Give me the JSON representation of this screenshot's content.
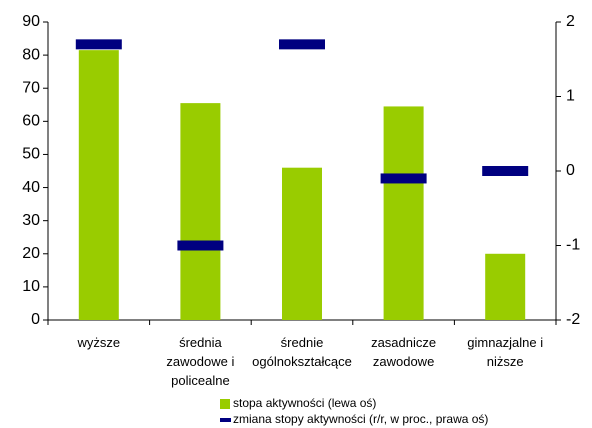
{
  "chart_data": {
    "type": "bar",
    "categories": [
      "wyższe",
      "średnia\nzawodowe i\npolicealne",
      "średnie\nogólnokształcące",
      "zasadnicze\nzawodowe",
      "gimnazjalne i\nniższe"
    ],
    "series": [
      {
        "name": "stopa aktywności (lewa oś)",
        "color": "#99cc00",
        "values": [
          81.5,
          65.5,
          46,
          64.5,
          20
        ]
      },
      {
        "name": "zmiana stopy aktywności (r/r, w proc., prawa oś)",
        "color": "#000080",
        "axis": "y2",
        "values": [
          1.7,
          -1.0,
          1.7,
          -0.1,
          0
        ]
      }
    ],
    "ylim": [
      0,
      90
    ],
    "yticks": [
      0,
      10,
      20,
      30,
      40,
      50,
      60,
      70,
      80,
      90
    ],
    "y2lim": [
      -2,
      2
    ],
    "y2ticks": [
      -2,
      -1,
      0,
      1,
      2
    ],
    "legend": "bottom"
  }
}
